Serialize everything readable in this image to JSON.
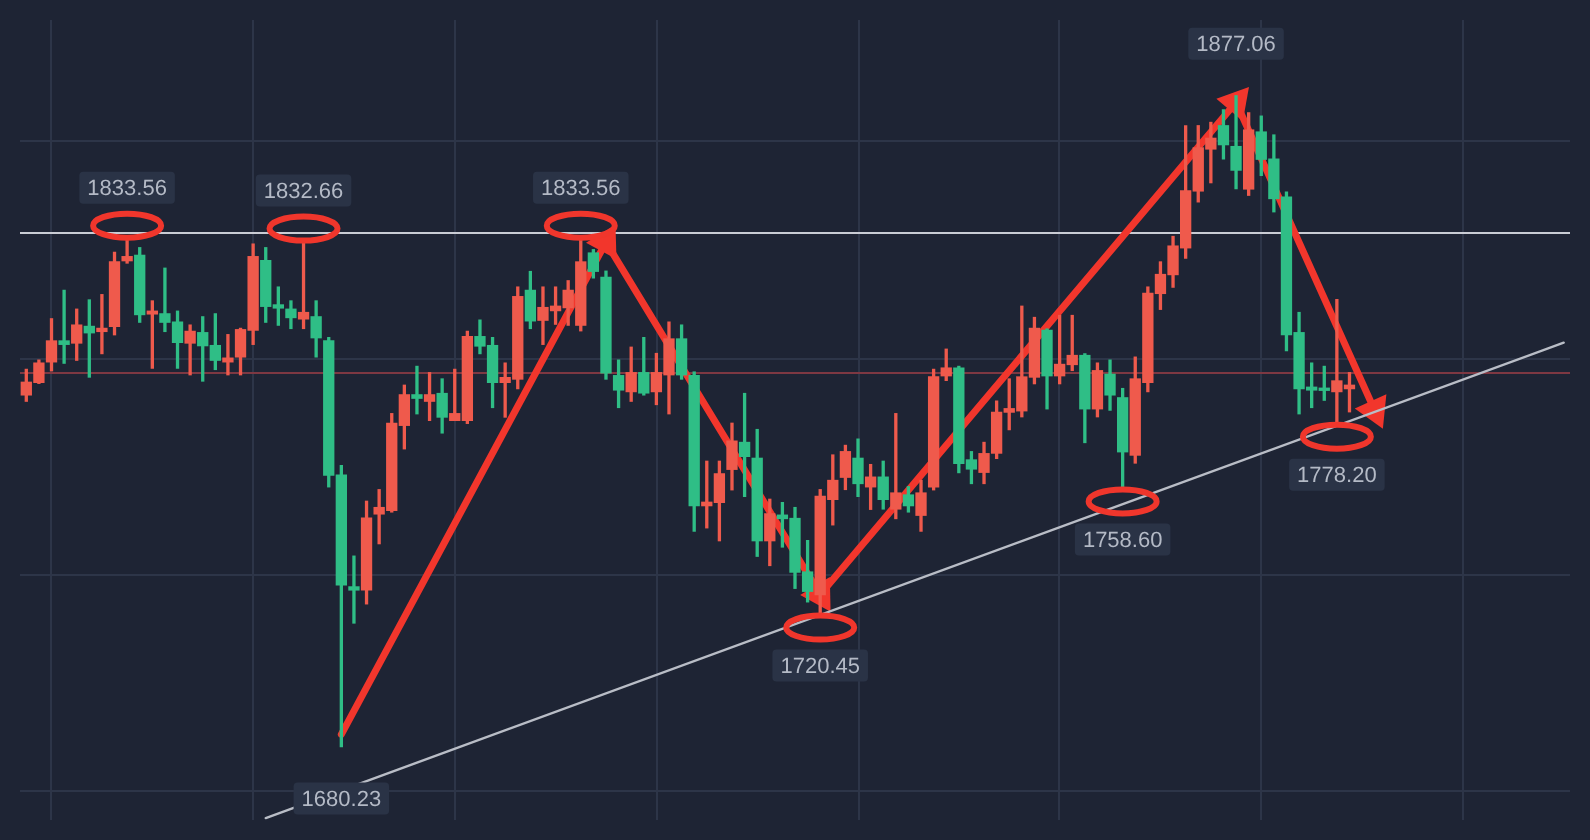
{
  "chart_data": {
    "type": "candlestick",
    "categories": [
      null,
      null,
      null,
      null,
      null,
      null,
      null,
      null,
      null,
      null,
      null,
      null,
      null,
      null,
      null,
      null,
      null,
      null,
      null,
      null,
      null,
      null,
      null,
      null,
      null,
      null,
      null,
      null,
      null,
      null,
      null,
      null,
      null,
      null,
      null,
      null,
      null,
      null,
      null,
      null,
      null,
      null,
      null,
      null,
      null,
      null,
      null,
      null,
      null,
      null,
      null,
      null,
      null,
      null,
      null,
      null,
      null,
      null,
      null,
      null,
      null,
      null,
      null,
      null,
      null,
      null,
      null,
      null,
      null,
      null,
      null,
      null,
      null,
      null,
      null,
      null,
      null,
      null,
      null,
      null,
      null,
      null,
      null,
      null,
      null,
      null,
      null,
      null,
      null,
      null,
      null,
      null,
      null,
      null,
      null,
      null,
      null,
      null,
      null,
      null,
      null,
      null,
      null,
      null,
      null,
      null,
      null,
      null,
      null,
      null,
      null,
      null,
      null,
      null,
      null,
      null,
      null,
      null,
      null,
      null,
      null,
      null,
      null
    ],
    "ohlc": [
      [
        1786.6,
        1794.3,
        1784.7,
        1790.4
      ],
      [
        1790.4,
        1797.1,
        1790.1,
        1796.2
      ],
      [
        1796.6,
        1809.6,
        1793.9,
        1802.9
      ],
      [
        1802.9,
        1818.2,
        1796.2,
        1801.9
      ],
      [
        1802.3,
        1812.5,
        1797.1,
        1807.7
      ],
      [
        1807.3,
        1815.3,
        1792.0,
        1805.4
      ],
      [
        1805.8,
        1816.9,
        1799.1,
        1806.7
      ],
      [
        1807.3,
        1829.7,
        1804.8,
        1826.8
      ],
      [
        1827.2,
        1833.56,
        1826.5,
        1828.4
      ],
      [
        1828.8,
        1831.1,
        1808.6,
        1810.9
      ],
      [
        1811.1,
        1815.0,
        1794.7,
        1811.9
      ],
      [
        1811.1,
        1824.9,
        1805.8,
        1808.6
      ],
      [
        1808.6,
        1811.9,
        1794.7,
        1802.5
      ],
      [
        1802.3,
        1807.7,
        1792.7,
        1805.8
      ],
      [
        1805.4,
        1810.2,
        1790.8,
        1801.5
      ],
      [
        1801.5,
        1811.1,
        1794.3,
        1797.1
      ],
      [
        1796.6,
        1804.8,
        1792.7,
        1797.7
      ],
      [
        1798.1,
        1806.7,
        1792.7,
        1806.3
      ],
      [
        1806.2,
        1832.2,
        1801.9,
        1828.4
      ],
      [
        1827.2,
        1831.1,
        1808.6,
        1813.4
      ],
      [
        1813.8,
        1819.2,
        1807.7,
        1812.9
      ],
      [
        1812.5,
        1815.0,
        1806.7,
        1810.0
      ],
      [
        1809.6,
        1832.66,
        1806.7,
        1811.5
      ],
      [
        1810.2,
        1815.0,
        1798.1,
        1803.9
      ],
      [
        1802.9,
        1803.9,
        1758.8,
        1762.3
      ],
      [
        1762.3,
        1765.2,
        1680.23,
        1729.1
      ],
      [
        1728.5,
        1737.8,
        1717.6,
        1727.6
      ],
      [
        1727.6,
        1754.4,
        1723.4,
        1749.3
      ],
      [
        1750.6,
        1757.9,
        1741.6,
        1752.5
      ],
      [
        1751.7,
        1780.9,
        1751.2,
        1778.0
      ],
      [
        1777.4,
        1789.5,
        1770.3,
        1786.6
      ],
      [
        1786.6,
        1795.2,
        1780.9,
        1785.6
      ],
      [
        1784.7,
        1793.3,
        1778.9,
        1786.6
      ],
      [
        1787.0,
        1791.4,
        1775.1,
        1779.9
      ],
      [
        1778.9,
        1794.3,
        1778.9,
        1780.9
      ],
      [
        1778.9,
        1805.8,
        1778.0,
        1804.2
      ],
      [
        1804.2,
        1809.2,
        1799.1,
        1801.4
      ],
      [
        1801.5,
        1803.9,
        1782.8,
        1790.4
      ],
      [
        1790.4,
        1796.2,
        1779.9,
        1791.8
      ],
      [
        1791.4,
        1819.2,
        1788.5,
        1816.3
      ],
      [
        1818.2,
        1823.9,
        1806.7,
        1809.0
      ],
      [
        1809.2,
        1819.2,
        1801.9,
        1813.0
      ],
      [
        1812.1,
        1819.2,
        1808.0,
        1813.4
      ],
      [
        1813.0,
        1821.1,
        1807.7,
        1818.2
      ],
      [
        1807.7,
        1833.56,
        1806.0,
        1826.8
      ],
      [
        1829.5,
        1830.5,
        1822.0,
        1824.0
      ],
      [
        1822.1,
        1824.0,
        1791.4,
        1793.3
      ],
      [
        1792.4,
        1797.1,
        1782.8,
        1788.1
      ],
      [
        1787.6,
        1801.0,
        1784.7,
        1793.3
      ],
      [
        1793.3,
        1803.9,
        1786.6,
        1787.2
      ],
      [
        1787.6,
        1799.1,
        1783.7,
        1793.3
      ],
      [
        1792.7,
        1808.6,
        1780.9,
        1803.5
      ],
      [
        1803.5,
        1807.7,
        1791.4,
        1792.7
      ],
      [
        1792.4,
        1793.5,
        1745.4,
        1753.1
      ],
      [
        1753.1,
        1766.5,
        1746.4,
        1754.1
      ],
      [
        1754.1,
        1766.5,
        1742.5,
        1762.7
      ],
      [
        1764.1,
        1778.0,
        1757.9,
        1772.6
      ],
      [
        1772.2,
        1787.0,
        1755.9,
        1768.0
      ],
      [
        1767.4,
        1776.1,
        1737.8,
        1742.5
      ],
      [
        1742.5,
        1755.0,
        1735.0,
        1750.6
      ],
      [
        1750.2,
        1754.0,
        1740.6,
        1749.2
      ],
      [
        1749.2,
        1752.5,
        1728.1,
        1733.0
      ],
      [
        1733.0,
        1742.5,
        1724.0,
        1727.2
      ],
      [
        1726.2,
        1757.9,
        1720.45,
        1755.9
      ],
      [
        1755.0,
        1768.4,
        1747.3,
        1760.7
      ],
      [
        1761.7,
        1771.3,
        1758.0,
        1769.4
      ],
      [
        1767.4,
        1773.2,
        1755.9,
        1759.8
      ],
      [
        1758.8,
        1765.5,
        1752.0,
        1761.7
      ],
      [
        1761.7,
        1766.5,
        1752.1,
        1755.0
      ],
      [
        1752.1,
        1780.9,
        1749.2,
        1756.9
      ],
      [
        1756.3,
        1758.8,
        1751.2,
        1753.1
      ],
      [
        1750.2,
        1760.7,
        1745.4,
        1756.9
      ],
      [
        1758.8,
        1794.3,
        1757.9,
        1792.0
      ],
      [
        1792.4,
        1800.4,
        1791.0,
        1794.7
      ],
      [
        1794.7,
        1795.2,
        1763.1,
        1765.9
      ],
      [
        1766.9,
        1769.4,
        1759.8,
        1764.2
      ],
      [
        1763.2,
        1772.2,
        1759.8,
        1768.8
      ],
      [
        1769.0,
        1784.7,
        1767.4,
        1781.3
      ],
      [
        1781.4,
        1791.4,
        1776.1,
        1782.4
      ],
      [
        1781.8,
        1813.4,
        1780.0,
        1792.0
      ],
      [
        1792.0,
        1810.0,
        1790.0,
        1806.7
      ],
      [
        1806.1,
        1806.5,
        1782.4,
        1792.4
      ],
      [
        1792.4,
        1810.6,
        1790.0,
        1795.8
      ],
      [
        1795.8,
        1810.6,
        1794.0,
        1798.5
      ],
      [
        1798.5,
        1799.0,
        1772.2,
        1782.4
      ],
      [
        1782.4,
        1796.2,
        1780.0,
        1793.9
      ],
      [
        1792.8,
        1797.1,
        1782.0,
        1786.6
      ],
      [
        1785.7,
        1788.5,
        1758.6,
        1769.4
      ],
      [
        1768.4,
        1798.0,
        1766.0,
        1791.4
      ],
      [
        1790.4,
        1819.2,
        1787.6,
        1817.3
      ],
      [
        1817.3,
        1826.8,
        1812.5,
        1823.0
      ],
      [
        1823.0,
        1834.5,
        1819.2,
        1831.6
      ],
      [
        1831.1,
        1868.0,
        1828.0,
        1848.3
      ],
      [
        1848.3,
        1868.0,
        1845.0,
        1861.3
      ],
      [
        1861.0,
        1869.0,
        1850.8,
        1864.2
      ],
      [
        1868.0,
        1872.8,
        1858.0,
        1862.3
      ],
      [
        1861.7,
        1877.06,
        1849.0,
        1854.6
      ],
      [
        1848.9,
        1871.9,
        1847.0,
        1866.7
      ],
      [
        1866.1,
        1870.9,
        1853.0,
        1857.9
      ],
      [
        1857.9,
        1865.2,
        1842.0,
        1846.0
      ],
      [
        1846.4,
        1847.9,
        1800.0,
        1804.8
      ],
      [
        1805.4,
        1811.5,
        1780.9,
        1788.5
      ],
      [
        1788.9,
        1796.2,
        1782.8,
        1788.1
      ],
      [
        1788.5,
        1795.2,
        1785.0,
        1788.0
      ],
      [
        1787.6,
        1815.4,
        1778.2,
        1790.8
      ],
      [
        1788.5,
        1793.3,
        1781.5,
        1789.5
      ],
      null,
      null,
      null,
      null,
      null,
      null,
      null,
      null,
      null,
      null,
      null,
      null,
      null,
      null,
      null,
      null,
      null
    ],
    "colors": [
      "#ef5a4c",
      "#ef5a4c",
      "#ef5a4c",
      "#2fbe86",
      "#ef5a4c",
      "#2fbe86",
      "#ef5a4c",
      "#ef5a4c",
      "#ef5a4c",
      "#2fbe86",
      "#ef5a4c",
      "#2fbe86",
      "#2fbe86",
      "#ef5a4c",
      "#2fbe86",
      "#2fbe86",
      "#ef5a4c",
      "#ef5a4c",
      "#ef5a4c",
      "#2fbe86",
      "#2fbe86",
      "#2fbe86",
      "#ef5a4c",
      "#2fbe86",
      "#2fbe86",
      "#2fbe86",
      "#2fbe86",
      "#ef5a4c",
      "#ef5a4c",
      "#ef5a4c",
      "#ef5a4c",
      "#2fbe86",
      "#ef5a4c",
      "#2fbe86",
      "#ef5a4c",
      "#ef5a4c",
      "#2fbe86",
      "#2fbe86",
      "#ef5a4c",
      "#ef5a4c",
      "#2fbe86",
      "#ef5a4c",
      "#ef5a4c",
      "#ef5a4c",
      "#ef5a4c",
      "#2fbe86",
      "#2fbe86",
      "#2fbe86",
      "#ef5a4c",
      "#2fbe86",
      "#ef5a4c",
      "#ef5a4c",
      "#2fbe86",
      "#2fbe86",
      "#ef5a4c",
      "#ef5a4c",
      "#ef5a4c",
      "#2fbe86",
      "#2fbe86",
      "#ef5a4c",
      "#2fbe86",
      "#2fbe86",
      "#2fbe86",
      "#ef5a4c",
      "#ef5a4c",
      "#ef5a4c",
      "#2fbe86",
      "#ef5a4c",
      "#2fbe86",
      "#ef5a4c",
      "#2fbe86",
      "#ef5a4c",
      "#ef5a4c",
      "#ef5a4c",
      "#2fbe86",
      "#2fbe86",
      "#ef5a4c",
      "#ef5a4c",
      "#ef5a4c",
      "#ef5a4c",
      "#ef5a4c",
      "#2fbe86",
      "#ef5a4c",
      "#ef5a4c",
      "#2fbe86",
      "#ef5a4c",
      "#2fbe86",
      "#2fbe86",
      "#ef5a4c",
      "#ef5a4c",
      "#ef5a4c",
      "#ef5a4c",
      "#ef5a4c",
      "#ef5a4c",
      "#ef5a4c",
      "#2fbe86",
      "#2fbe86",
      "#ef5a4c",
      "#2fbe86",
      "#2fbe86",
      "#2fbe86",
      "#2fbe86",
      "#2fbe86",
      "#2fbe86",
      "#ef5a4c",
      "#ef5a4c",
      null,
      null,
      null,
      null,
      null,
      null,
      null,
      null,
      null,
      null,
      null,
      null,
      null,
      null,
      null,
      null,
      null
    ],
    "series": [
      {
        "type": "line",
        "color": "#b9bdc6",
        "values": [
          null,
          null,
          null,
          null,
          null,
          null,
          null,
          null,
          null,
          null,
          null,
          null,
          null,
          null,
          null,
          null,
          null,
          null,
          null,
          1658.6,
          null,
          null,
          null,
          null,
          null,
          null,
          null,
          null,
          null,
          null,
          null,
          null,
          null,
          null,
          null,
          null,
          null,
          null,
          null,
          null,
          null,
          null,
          null,
          null,
          null,
          null,
          null,
          null,
          null,
          null,
          null,
          null,
          null,
          null,
          null,
          null,
          null,
          null,
          null,
          null,
          null,
          null,
          null,
          null,
          null,
          null,
          null,
          null,
          null,
          null,
          null,
          null,
          null,
          null,
          null,
          null,
          null,
          null,
          null,
          null,
          null,
          null,
          null,
          null,
          null,
          null,
          null,
          null,
          null,
          null,
          null,
          null,
          null,
          null,
          null,
          null,
          null,
          null,
          null,
          null,
          null,
          null,
          null,
          null,
          null,
          null,
          null,
          null,
          null,
          null,
          null,
          null,
          null,
          null,
          null,
          null,
          null,
          null,
          null,
          null,
          null,
          null,
          1802.4
        ]
      },
      {
        "type": "line",
        "color": "#f2362c",
        "marker": "triangle",
        "values": [
          null,
          null,
          null,
          null,
          null,
          null,
          null,
          null,
          null,
          null,
          null,
          null,
          null,
          null,
          null,
          null,
          null,
          null,
          null,
          null,
          null,
          null,
          null,
          null,
          null,
          1683.9,
          null,
          null,
          null,
          null,
          null,
          null,
          null,
          null,
          null,
          null,
          null,
          null,
          null,
          null,
          null,
          null,
          null,
          null,
          null,
          null,
          1832.8,
          null,
          null,
          null,
          null,
          null,
          null,
          null,
          null,
          null,
          null,
          null,
          null,
          null,
          null,
          null,
          null,
          1726.2,
          null,
          null,
          null,
          null,
          null,
          null,
          null,
          null,
          null,
          null,
          null,
          null,
          null,
          null,
          null,
          null,
          null,
          null,
          null,
          null,
          null,
          null,
          null,
          null,
          null,
          null,
          null,
          null,
          null,
          null,
          null,
          null,
          1875.1,
          null,
          null,
          null,
          null,
          null,
          null,
          null,
          null,
          null,
          null,
          1781.9,
          null,
          null,
          null,
          null,
          null,
          null,
          null,
          null,
          null,
          null,
          null,
          null,
          null,
          null,
          null
        ]
      }
    ],
    "ylim": [
      1658,
      1900
    ],
    "yticks": [
      {
        "value": 1666.6,
        "label": null
      },
      {
        "value": 1731.9,
        "label": null
      },
      {
        "value": 1797.3,
        "label": null
      },
      {
        "value": 1863.5,
        "label": null
      }
    ],
    "grid": true,
    "tick_labels": false,
    "ref_lines": [
      {
        "axis": "y",
        "value": 1835.6,
        "color": "#c9ccd4"
      },
      {
        "axis": "y",
        "value": 1793.4,
        "color": "#7e3842"
      }
    ],
    "annotations": [
      {
        "text": "1833.56",
        "y": 1833.56
      },
      {
        "text": "1832.66",
        "y": 1832.66
      },
      {
        "text": "1680.23",
        "y": 1680.23
      },
      {
        "text": "1833.56",
        "y": 1833.56
      },
      {
        "text": "1720.45",
        "y": 1720.45
      },
      {
        "text": "1758.60",
        "y": 1758.6
      },
      {
        "text": "1877.06",
        "y": 1877.06
      },
      {
        "text": "1778.20",
        "y": 1778.2
      }
    ]
  }
}
